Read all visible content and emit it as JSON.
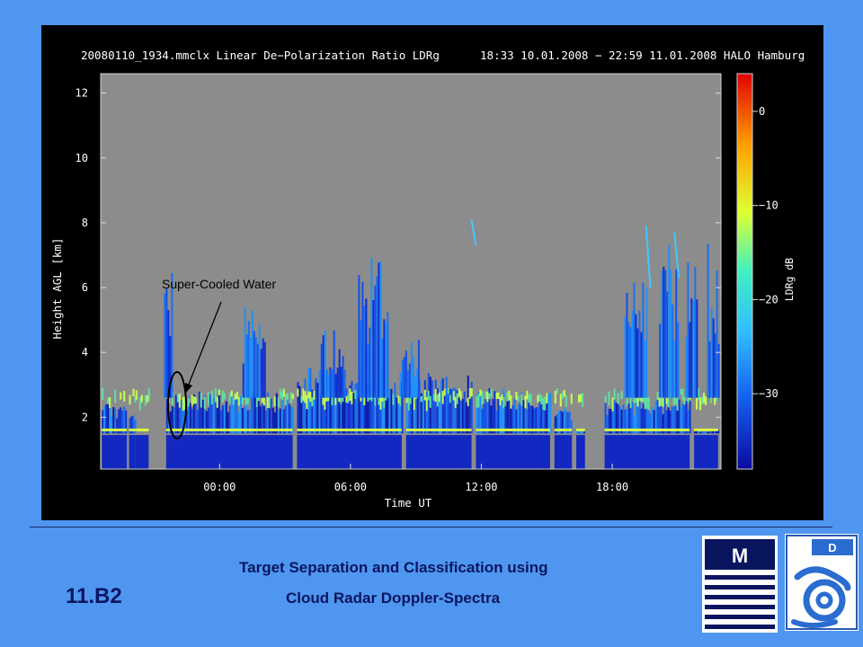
{
  "slide": {
    "footer_line1": "Target Separation and Classification using",
    "footer_line2": "Cloud Radar Doppler-Spectra",
    "session_code": "11.B2",
    "logos": {
      "left": "METEK",
      "right": "DWD"
    }
  },
  "chart_data": {
    "type": "heatmap",
    "title": "20080110_1934.mmclx Linear De−Polarization Ratio LDRg      18:33 10.01.2008 − 22:59 11.01.2008 HALO Hamburg",
    "xlabel": "Time UT",
    "ylabel": "Height AGL [km]",
    "xlim": [
      "18:33",
      "22:59"
    ],
    "x_ticks": [
      "00:00",
      "06:00",
      "12:00",
      "18:00"
    ],
    "ylim": [
      0.4,
      12.6
    ],
    "y_ticks": [
      2,
      4,
      6,
      8,
      10,
      12
    ],
    "colorbar": {
      "label": "LDRg dB",
      "range": [
        -38,
        4
      ],
      "ticks": [
        0,
        -10,
        -20,
        -30
      ],
      "tick_labels": [
        "0",
        "−10",
        "−20",
        "−30"
      ],
      "colors": [
        "#0a0aa0",
        "#1560f0",
        "#30c0ff",
        "#40f0c0",
        "#e0ff30",
        "#ffa000",
        "#e00000"
      ]
    },
    "background_color": "#8c8c8c",
    "annotations": [
      {
        "text": "Super-Cooled Water",
        "arrow_to_time_h": 5.9,
        "arrow_to_height_km": 3.3,
        "ellipse_time_h": 5.65,
        "ellipse_height_km": 2.1
      }
    ]
  }
}
